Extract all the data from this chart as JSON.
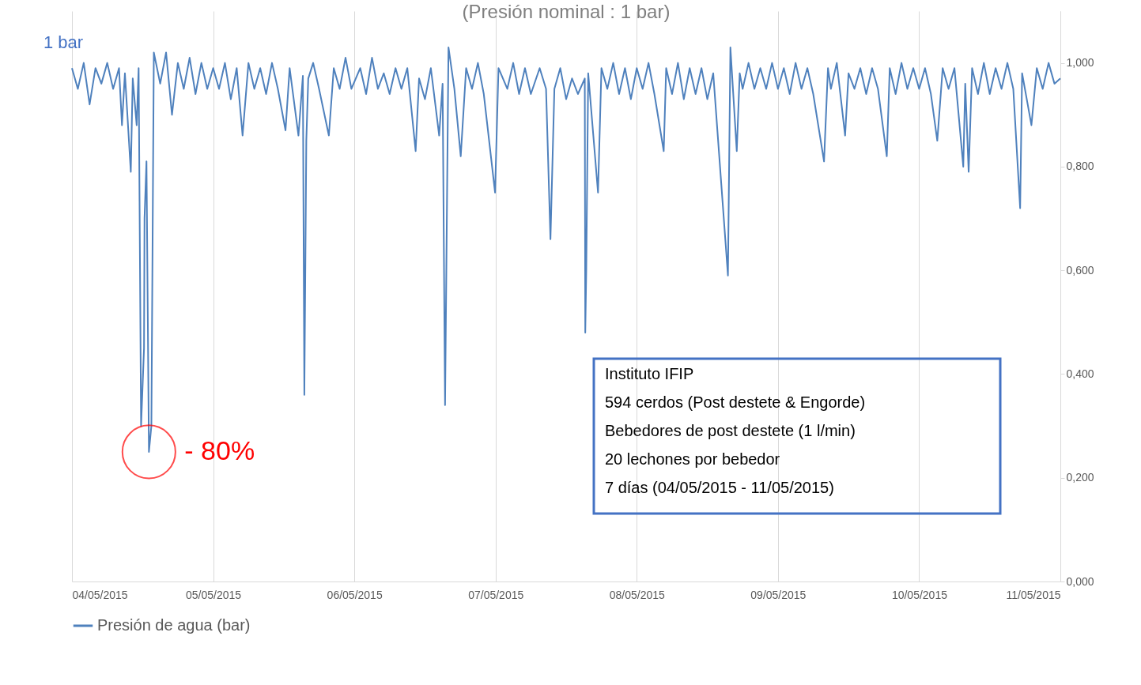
{
  "chart_data": {
    "type": "line",
    "title": "(Presión nominal : 1 bar)",
    "x": [
      "2015-05-04T00:00",
      "2015-05-04T01:00",
      "2015-05-04T02:00",
      "2015-05-04T03:00",
      "2015-05-04T04:00",
      "2015-05-04T05:00",
      "2015-05-04T06:00",
      "2015-05-04T07:00",
      "2015-05-04T08:00",
      "2015-05-04T08:30",
      "2015-05-04T09:00",
      "2015-05-04T10:00",
      "2015-05-04T10:20",
      "2015-05-04T11:00",
      "2015-05-04T11:20",
      "2015-05-04T11:45",
      "2015-05-04T12:15",
      "2015-05-04T12:20",
      "2015-05-04T12:40",
      "2015-05-04T13:05",
      "2015-05-04T13:30",
      "2015-05-04T13:55",
      "2015-05-04T15:00",
      "2015-05-04T16:00",
      "2015-05-04T17:00",
      "2015-05-04T18:00",
      "2015-05-04T19:00",
      "2015-05-04T20:00",
      "2015-05-04T21:00",
      "2015-05-04T22:00",
      "2015-05-04T23:00",
      "2015-05-05T00:00",
      "2015-05-05T01:00",
      "2015-05-05T02:00",
      "2015-05-05T03:00",
      "2015-05-05T04:00",
      "2015-05-05T05:00",
      "2015-05-05T06:00",
      "2015-05-05T07:00",
      "2015-05-05T08:00",
      "2015-05-05T09:00",
      "2015-05-05T10:00",
      "2015-05-05T11:00",
      "2015-05-05T12:18",
      "2015-05-05T13:00",
      "2015-05-05T14:30",
      "2015-05-05T15:15",
      "2015-05-05T15:30",
      "2015-05-05T15:50",
      "2015-05-05T16:10",
      "2015-05-05T17:00",
      "2015-05-05T18:00",
      "2015-05-05T19:40",
      "2015-05-05T20:30",
      "2015-05-05T21:30",
      "2015-05-05T22:30",
      "2015-05-05T23:30",
      "2015-05-06T01:00",
      "2015-05-06T02:00",
      "2015-05-06T03:00",
      "2015-05-06T04:00",
      "2015-05-06T05:00",
      "2015-05-06T06:00",
      "2015-05-06T07:00",
      "2015-05-06T08:00",
      "2015-05-06T09:00",
      "2015-05-06T10:25",
      "2015-05-06T11:00",
      "2015-05-06T12:00",
      "2015-05-06T13:00",
      "2015-05-06T14:25",
      "2015-05-06T15:00",
      "2015-05-06T15:25",
      "2015-05-06T16:00",
      "2015-05-06T17:00",
      "2015-05-06T18:05",
      "2015-05-06T19:00",
      "2015-05-06T20:00",
      "2015-05-06T21:00",
      "2015-05-06T22:00",
      "2015-05-06T23:55",
      "2015-05-07T00:30",
      "2015-05-07T02:00",
      "2015-05-07T03:00",
      "2015-05-07T04:00",
      "2015-05-07T05:00",
      "2015-05-07T06:00",
      "2015-05-07T07:30",
      "2015-05-07T08:35",
      "2015-05-07T09:20",
      "2015-05-07T10:00",
      "2015-05-07T11:00",
      "2015-05-07T12:00",
      "2015-05-07T13:00",
      "2015-05-07T14:00",
      "2015-05-07T15:10",
      "2015-05-07T15:15",
      "2015-05-07T15:25",
      "2015-05-07T15:45",
      "2015-05-07T17:25",
      "2015-05-07T18:00",
      "2015-05-07T19:00",
      "2015-05-07T20:00",
      "2015-05-07T21:00",
      "2015-05-07T22:00",
      "2015-05-07T23:00",
      "2015-05-08T00:00",
      "2015-05-08T01:00",
      "2015-05-08T02:00",
      "2015-05-08T03:00",
      "2015-05-08T04:35",
      "2015-05-08T05:00",
      "2015-05-08T06:00",
      "2015-05-08T07:00",
      "2015-05-08T08:00",
      "2015-05-08T09:00",
      "2015-05-08T10:00",
      "2015-05-08T11:00",
      "2015-05-08T12:00",
      "2015-05-08T13:00",
      "2015-05-08T15:30",
      "2015-05-08T15:55",
      "2015-05-08T17:00",
      "2015-05-08T17:30",
      "2015-05-08T18:00",
      "2015-05-08T19:00",
      "2015-05-08T20:00",
      "2015-05-08T21:00",
      "2015-05-08T22:00",
      "2015-05-08T23:00",
      "2015-05-09T00:00",
      "2015-05-09T01:00",
      "2015-05-09T02:00",
      "2015-05-09T03:00",
      "2015-05-09T04:00",
      "2015-05-09T05:00",
      "2015-05-09T06:00",
      "2015-05-09T07:50",
      "2015-05-09T08:30",
      "2015-05-09T09:00",
      "2015-05-09T10:00",
      "2015-05-09T11:25",
      "2015-05-09T12:00",
      "2015-05-09T13:00",
      "2015-05-09T14:00",
      "2015-05-09T15:00",
      "2015-05-09T16:00",
      "2015-05-09T17:00",
      "2015-05-09T18:30",
      "2015-05-09T19:00",
      "2015-05-09T20:00",
      "2015-05-09T21:00",
      "2015-05-09T22:00",
      "2015-05-09T23:00",
      "2015-05-10T00:00",
      "2015-05-10T01:00",
      "2015-05-10T02:00",
      "2015-05-10T03:05",
      "2015-05-10T04:00",
      "2015-05-10T05:00",
      "2015-05-10T06:00",
      "2015-05-10T07:30",
      "2015-05-10T07:50",
      "2015-05-10T08:25",
      "2015-05-10T09:00",
      "2015-05-10T10:00",
      "2015-05-10T11:00",
      "2015-05-10T12:00",
      "2015-05-10T13:00",
      "2015-05-10T14:00",
      "2015-05-10T15:00",
      "2015-05-10T16:00",
      "2015-05-10T17:10",
      "2015-05-10T17:30",
      "2015-05-10T19:05",
      "2015-05-10T20:00",
      "2015-05-10T21:00",
      "2015-05-10T22:00",
      "2015-05-10T23:00",
      "2015-05-11T00:00"
    ],
    "series": [
      {
        "name": "Presión de agua (bar)",
        "color": "#4f81bd",
        "values": [
          0.99,
          0.95,
          1.0,
          0.92,
          0.99,
          0.96,
          1.0,
          0.95,
          0.99,
          0.88,
          0.98,
          0.79,
          0.97,
          0.88,
          0.99,
          0.3,
          0.45,
          0.7,
          0.81,
          0.25,
          0.3,
          1.02,
          0.96,
          1.02,
          0.9,
          1.0,
          0.95,
          1.01,
          0.94,
          1.0,
          0.95,
          0.99,
          0.95,
          1.0,
          0.93,
          0.99,
          0.86,
          1.0,
          0.95,
          0.99,
          0.94,
          1.0,
          0.95,
          0.87,
          0.99,
          0.86,
          0.975,
          0.36,
          0.85,
          0.97,
          1.0,
          0.95,
          0.86,
          0.99,
          0.95,
          1.01,
          0.95,
          0.99,
          0.94,
          1.01,
          0.95,
          0.98,
          0.94,
          0.99,
          0.95,
          0.99,
          0.83,
          0.97,
          0.93,
          0.99,
          0.86,
          0.96,
          0.34,
          1.03,
          0.95,
          0.82,
          0.99,
          0.95,
          1.0,
          0.94,
          0.75,
          0.99,
          0.95,
          1.0,
          0.94,
          0.99,
          0.94,
          0.99,
          0.95,
          0.66,
          0.95,
          0.99,
          0.93,
          0.97,
          0.94,
          0.97,
          0.48,
          0.6,
          0.98,
          0.75,
          0.99,
          0.95,
          1.0,
          0.94,
          0.99,
          0.93,
          0.99,
          0.95,
          1.0,
          0.94,
          0.83,
          0.99,
          0.94,
          1.0,
          0.93,
          0.99,
          0.94,
          0.99,
          0.93,
          0.98,
          0.59,
          1.03,
          0.83,
          0.98,
          0.95,
          1.0,
          0.95,
          0.99,
          0.95,
          1.0,
          0.95,
          0.99,
          0.94,
          1.0,
          0.95,
          0.99,
          0.94,
          0.81,
          0.99,
          0.95,
          1.0,
          0.86,
          0.98,
          0.95,
          0.99,
          0.94,
          0.99,
          0.95,
          0.82,
          0.99,
          0.94,
          1.0,
          0.95,
          0.99,
          0.95,
          0.99,
          0.94,
          0.85,
          0.99,
          0.95,
          0.99,
          0.8,
          0.96,
          0.79,
          0.99,
          0.94,
          1.0,
          0.94,
          0.99,
          0.95,
          1.0,
          0.95,
          0.72,
          0.98,
          0.88,
          0.99,
          0.95,
          1.0,
          0.96,
          0.97
        ]
      }
    ],
    "xlim": [
      "2015-05-04T00:00",
      "2015-05-11T00:00"
    ],
    "xticks": [
      {
        "value": "2015-05-04T00:00",
        "label": "04/05/2015"
      },
      {
        "value": "2015-05-05T00:00",
        "label": "05/05/2015"
      },
      {
        "value": "2015-05-06T00:00",
        "label": "06/05/2015"
      },
      {
        "value": "2015-05-07T00:00",
        "label": "07/05/2015"
      },
      {
        "value": "2015-05-08T00:00",
        "label": "08/05/2015"
      },
      {
        "value": "2015-05-09T00:00",
        "label": "09/05/2015"
      },
      {
        "value": "2015-05-10T00:00",
        "label": "10/05/2015"
      },
      {
        "value": "2015-05-11T00:00",
        "label": "11/05/2015"
      }
    ],
    "ylim": [
      0,
      1.1
    ],
    "yticks": [
      {
        "value": 0,
        "label": "0,000"
      },
      {
        "value": 0.2,
        "label": "0,200"
      },
      {
        "value": 0.4,
        "label": "0,400"
      },
      {
        "value": 0.6,
        "label": "0,600"
      },
      {
        "value": 0.8,
        "label": "0,800"
      },
      {
        "value": 1.0,
        "label": "1,000"
      }
    ],
    "grid": "x",
    "legend": "bottom",
    "marker": "none",
    "line_style": "solid",
    "annotations": [
      "1 bar",
      {
        "text": "- 80%",
        "x": "2015-05-04T13:05",
        "y": 0.25
      },
      "Instituto IFIP",
      "594 cerdos (Post destete & Engorde)",
      "Bebedores de post destete (1 l/min)",
      "20 lechones por bebedor",
      "7 días (04/05/2015  -  11/05/2015)"
    ]
  }
}
